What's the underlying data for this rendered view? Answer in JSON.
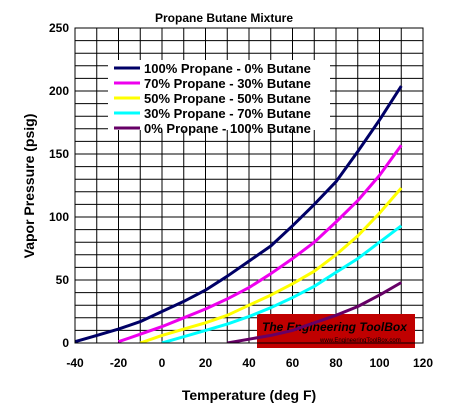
{
  "chart_data": {
    "type": "line",
    "title": "Propane Butane Mixture",
    "xlabel": "Temperature (deg F)",
    "ylabel": "Vapor Pressure (psig)",
    "xlim": [
      -40,
      120
    ],
    "ylim": [
      0,
      250
    ],
    "x_ticks": [
      -40,
      -20,
      0,
      20,
      40,
      60,
      80,
      100,
      120
    ],
    "y_ticks": [
      0,
      50,
      100,
      150,
      200,
      250
    ],
    "x_tick_labels": [
      "-40",
      "-20",
      "0",
      "20",
      "40",
      "60",
      "80",
      "100",
      "120"
    ],
    "y_tick_labels": [
      "0",
      "50",
      "100",
      "150",
      "200",
      "250"
    ],
    "grid": true,
    "legend_position": "top-left inside",
    "series": [
      {
        "name": "100% Propane - 0% Butane",
        "color": "#000066",
        "x": [
          -40,
          -30,
          -20,
          -10,
          0,
          10,
          20,
          30,
          40,
          50,
          60,
          70,
          80,
          90,
          100,
          110
        ],
        "y": [
          1,
          6,
          11,
          17,
          25,
          33,
          42,
          53,
          65,
          77,
          93,
          110,
          128,
          152,
          177,
          204
        ]
      },
      {
        "name": "70% Propane - 30% Butane",
        "color": "#ee00ee",
        "x": [
          -20,
          -10,
          0,
          10,
          20,
          30,
          40,
          50,
          60,
          70,
          80,
          90,
          100,
          110
        ],
        "y": [
          1,
          7,
          13,
          20,
          27,
          35,
          44,
          55,
          67,
          80,
          96,
          113,
          133,
          157
        ]
      },
      {
        "name": "50% Propane - 50% Butane",
        "color": "#ffff00",
        "x": [
          -10,
          0,
          10,
          20,
          30,
          40,
          50,
          60,
          70,
          80,
          90,
          100,
          110
        ],
        "y": [
          0,
          6,
          11,
          16,
          22,
          30,
          38,
          47,
          57,
          70,
          85,
          103,
          123
        ]
      },
      {
        "name": "30% Propane - 70% Butane",
        "color": "#00ffff",
        "x": [
          0,
          10,
          20,
          30,
          40,
          50,
          60,
          70,
          80,
          90,
          100,
          110
        ],
        "y": [
          0,
          5,
          10,
          15,
          21,
          28,
          36,
          45,
          56,
          67,
          80,
          93
        ]
      },
      {
        "name": "0% Propane - 100% Butane",
        "color": "#660066",
        "x": [
          30,
          40,
          50,
          60,
          70,
          80,
          90,
          100,
          110
        ],
        "y": [
          0,
          3,
          6,
          10,
          16,
          22,
          29,
          38,
          48
        ]
      }
    ]
  },
  "watermark": {
    "title": "The Engineering ToolBox",
    "url": "www.EngineeringToolBox.com",
    "color": "#ffffff",
    "background": "#c00000"
  }
}
